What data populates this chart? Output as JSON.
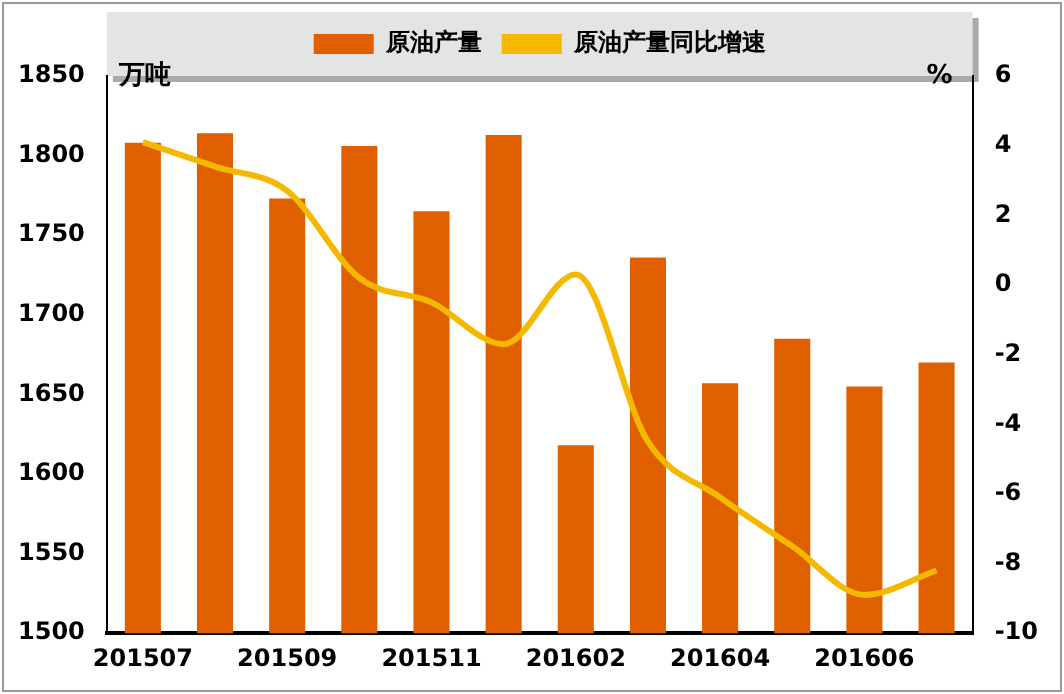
{
  "chart_data": {
    "type": "bar",
    "ylabel": "万吨",
    "y2label": "%",
    "categories": [
      "201507",
      null,
      "201509",
      null,
      "201511",
      null,
      "201602",
      null,
      "201604",
      null,
      "201606",
      null
    ],
    "series": [
      {
        "name": "原油产量",
        "color": "#e06000",
        "values": [
          1808,
          1814,
          1773,
          1806,
          1765,
          1813,
          1618,
          1736,
          1657,
          1685,
          1655,
          1670
        ]
      },
      {
        "name": "原油产量同比增速",
        "type": "line",
        "axis": "y2",
        "color": "#f5b800",
        "values": [
          4.1,
          3.4,
          2.7,
          0.2,
          -0.5,
          -1.7,
          0.3,
          -4.5,
          -6.1,
          -7.5,
          -8.9,
          -8.2
        ]
      }
    ],
    "ylim": [
      1500,
      1850
    ],
    "yticks": [
      1500,
      1550,
      1600,
      1650,
      1700,
      1750,
      1800,
      1850
    ],
    "y2lim": [
      -10,
      6
    ],
    "y2ticks": [
      -10,
      -8,
      -6,
      -4,
      -2,
      0,
      2,
      4,
      6
    ],
    "legend": "top",
    "grid": false,
    "marker": "none"
  }
}
